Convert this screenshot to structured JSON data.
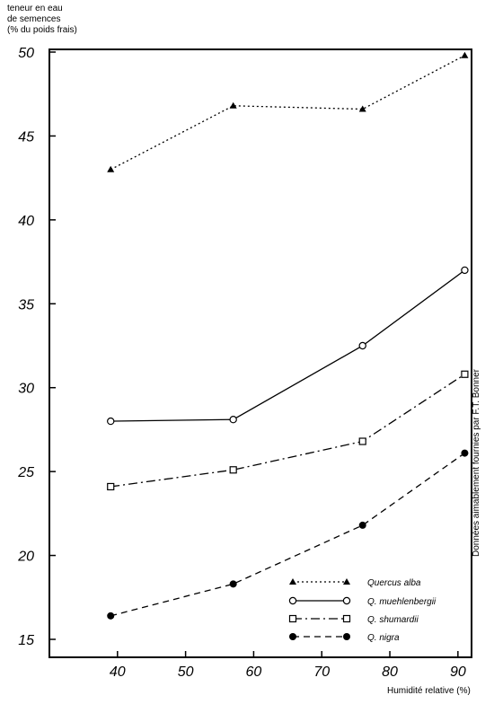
{
  "chart_data": {
    "type": "line",
    "ylabel": "teneur en eau\nde semences\n(% du poids frais)",
    "xlabel": "Humidité relative (%)",
    "xlim": [
      30,
      92
    ],
    "ylim": [
      14,
      50
    ],
    "xticks": [
      40,
      50,
      60,
      70,
      80,
      90
    ],
    "yticks": [
      15,
      20,
      25,
      30,
      35,
      40,
      45,
      50
    ],
    "x": [
      39,
      57,
      76,
      91
    ],
    "series": [
      {
        "name": "Quercus alba",
        "values": [
          43.0,
          46.8,
          46.6,
          49.8
        ],
        "marker": "triangle-filled",
        "dash": "dotted"
      },
      {
        "name": "Q. muehlenbergii",
        "values": [
          28.0,
          28.1,
          32.5,
          37.0
        ],
        "marker": "circle-open",
        "dash": "solid"
      },
      {
        "name": "Q. shumardii",
        "values": [
          24.1,
          25.1,
          26.8,
          30.8
        ],
        "marker": "square-open",
        "dash": "dash-dot"
      },
      {
        "name": "Q. nigra",
        "values": [
          16.4,
          18.3,
          21.8,
          26.1
        ],
        "marker": "circle-filled",
        "dash": "dashed"
      }
    ],
    "legend_position": "lower-right",
    "grid": false,
    "annotation": "Données aimablement fournies par F.T. Bonner"
  }
}
